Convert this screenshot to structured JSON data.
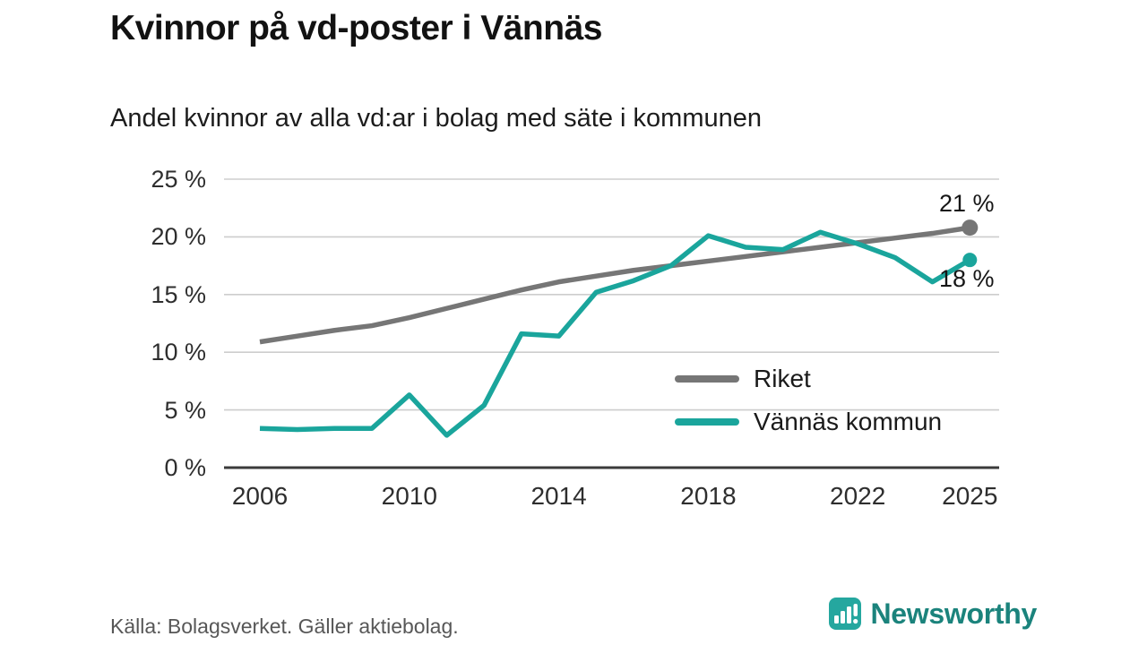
{
  "page": {
    "title": "Kvinnor på vd-poster i Vännäs",
    "subtitle": "Andel kvinnor av alla vd:ar i bolag med säte i kommunen",
    "source": "Källa: Bolagsverket. Gäller aktiebolag.",
    "brand": "Newsworthy"
  },
  "colors": {
    "riket_gray": "#767676",
    "vannas_teal": "#1aa59c",
    "grid": "#cdcdcd",
    "axis": "#3b3b3b",
    "brand_teal": "#1b837c"
  },
  "chart_data": {
    "type": "line",
    "title": "Kvinnor på vd-poster i Vännäs",
    "subtitle": "Andel kvinnor av alla vd:ar i bolag med säte i kommunen",
    "x": [
      2006,
      2007,
      2008,
      2009,
      2010,
      2011,
      2012,
      2013,
      2014,
      2015,
      2016,
      2017,
      2018,
      2019,
      2020,
      2021,
      2022,
      2023,
      2024,
      2025
    ],
    "series": [
      {
        "name": "Riket",
        "color": "#767676",
        "end_label": "21 %",
        "values": [
          10.9,
          11.4,
          11.9,
          12.3,
          13.0,
          13.8,
          14.6,
          15.4,
          16.1,
          16.6,
          17.1,
          17.5,
          17.9,
          18.3,
          18.7,
          19.1,
          19.5,
          19.9,
          20.3,
          20.8
        ]
      },
      {
        "name": "Vännäs kommun",
        "color": "#1aa59c",
        "end_label": "18 %",
        "values": [
          3.4,
          3.3,
          3.4,
          3.4,
          6.3,
          2.8,
          5.4,
          11.6,
          11.4,
          15.2,
          16.2,
          17.5,
          20.1,
          19.1,
          18.9,
          20.4,
          19.4,
          18.2,
          16.1,
          18.0
        ]
      }
    ],
    "ylim": [
      0,
      25
    ],
    "ytick_values": [
      0,
      5,
      10,
      15,
      20,
      25
    ],
    "ytick_labels": [
      "0 %",
      "5 %",
      "10 %",
      "15 %",
      "20 %",
      "25 %"
    ],
    "xtick_values": [
      2006,
      2010,
      2014,
      2018,
      2022,
      2025
    ],
    "xtick_labels": [
      "2006",
      "2010",
      "2014",
      "2018",
      "2022",
      "2025"
    ],
    "grid": "horizontal",
    "legend_position": "inside-right"
  }
}
